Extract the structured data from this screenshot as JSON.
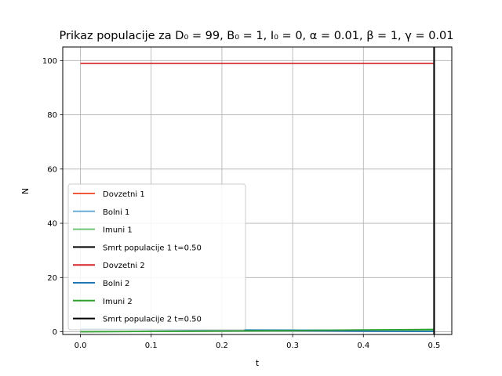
{
  "chart_data": {
    "type": "line",
    "title": "Prikaz populacije za D₀ = 99, B₀ = 1, I₀ = 0, α = 0.01, β = 1, γ = 0.01",
    "xlabel": "t",
    "ylabel": "N",
    "xlim": [
      -0.025,
      0.525
    ],
    "ylim": [
      -1,
      105
    ],
    "xticks": [
      "0.0",
      "0.1",
      "0.2",
      "0.3",
      "0.4",
      "0.5"
    ],
    "yticks": [
      "0",
      "20",
      "40",
      "60",
      "80",
      "100"
    ],
    "grid": true,
    "legend_position": "center-left",
    "x": [
      0.0,
      0.1,
      0.2,
      0.3,
      0.4,
      0.5
    ],
    "series": [
      {
        "name": "Dovzetni 1",
        "color": "#f2583e",
        "values": [
          99,
          99,
          99,
          99,
          99,
          99
        ]
      },
      {
        "name": "Bolni 1",
        "color": "#6baed6",
        "values": [
          1,
          0.9,
          0.8,
          0.7,
          0.6,
          0.5
        ]
      },
      {
        "name": "Imuni 1",
        "color": "#74c476",
        "values": [
          0,
          0.1,
          0.2,
          0.3,
          0.45,
          0.55
        ]
      },
      {
        "name": "Smrt populacije 1 t=0.50",
        "color": "#000000",
        "vline": 0.5
      },
      {
        "name": "Dovzetni 2",
        "color": "#d62728",
        "values": [
          99,
          99,
          99,
          99,
          99,
          99
        ]
      },
      {
        "name": "Bolni 2",
        "color": "#1f77b4",
        "values": [
          1,
          0.8,
          0.6,
          0.4,
          0.2,
          0.1
        ]
      },
      {
        "name": "Imuni 2",
        "color": "#2ca02c",
        "values": [
          0,
          0.15,
          0.3,
          0.5,
          0.7,
          0.9
        ]
      },
      {
        "name": "Smrt populacije 2 t=0.50",
        "color": "#000000",
        "vline": 0.5
      }
    ]
  }
}
